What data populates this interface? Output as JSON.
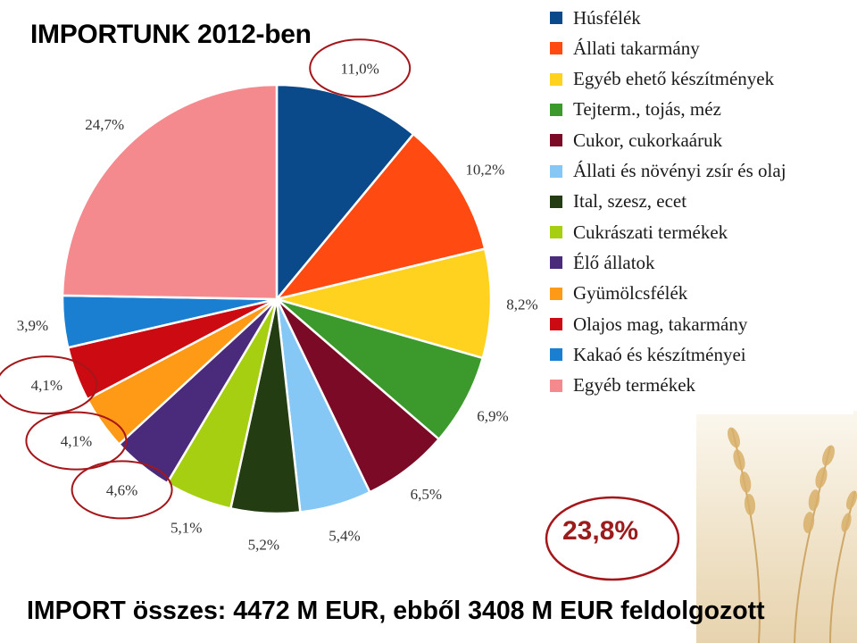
{
  "title": "IMPORTUNK 2012-ben",
  "highlight_value": "23,8%",
  "footer_text": "IMPORT összes: 4472 M EUR, ebből 3408 M EUR feldolgozott",
  "chart_data": {
    "type": "pie",
    "start_angle_deg": 0,
    "direction": "clockwise",
    "legend_position": "right",
    "slices": [
      {
        "name": "Húsfélék",
        "value": 11.0,
        "label": "11,0%",
        "color": "#0b4a8a"
      },
      {
        "name": "Állati takarmány",
        "value": 10.2,
        "label": "10,2%",
        "color": "#ff4a12"
      },
      {
        "name": "Egyéb ehető készítmények",
        "value": 8.2,
        "label": "8,2%",
        "color": "#ffd21f"
      },
      {
        "name": "Tejterm., tojás, méz",
        "value": 6.9,
        "label": "6,9%",
        "color": "#3c9a2c"
      },
      {
        "name": "Cukor, cukorkaáruk",
        "value": 6.5,
        "label": "6,5%",
        "color": "#7a0a25"
      },
      {
        "name": "Állati és növényi zsír és olaj",
        "value": 5.4,
        "label": "5,4%",
        "color": "#85c8f5"
      },
      {
        "name": "Ital, szesz, ecet",
        "value": 5.2,
        "label": "5,2%",
        "color": "#233c12"
      },
      {
        "name": "Cukrászati termékek",
        "value": 5.1,
        "label": "5,1%",
        "color": "#a6cf12"
      },
      {
        "name": "Élő állatok",
        "value": 4.6,
        "label": "4,6%",
        "color": "#4a2a7a"
      },
      {
        "name": "Gyümölcsfélék",
        "value": 4.1,
        "label": "4,1%",
        "color": "#ff9a16"
      },
      {
        "name": "Olajos mag, takarmány",
        "value": 4.1,
        "label": "4,1%",
        "color": "#cc0a12"
      },
      {
        "name": "Kakaó és készítményei",
        "value": 3.9,
        "label": "3,9%",
        "color": "#1a7fd0"
      },
      {
        "name": "Egyéb termékek",
        "value": 24.7,
        "label": "24,7%",
        "color": "#f58a8e"
      }
    ],
    "circled_labels": [
      "11,0%",
      "4,1%",
      "4,1%",
      "4,6%"
    ]
  }
}
